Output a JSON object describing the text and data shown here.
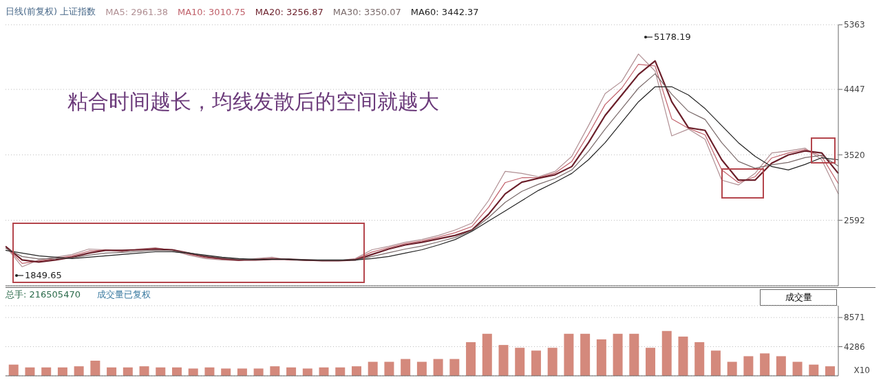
{
  "chart_data": [
    {
      "type": "line",
      "subtitle": "日线(前复权)  上证指数",
      "annotations": [
        "粘合时间越长，均线发散后的空间就越大",
        "5178.19",
        "1849.65"
      ],
      "categories": [
        null,
        null,
        null,
        null,
        null,
        null,
        null,
        null,
        null,
        null,
        null,
        null,
        null,
        null,
        null,
        null,
        null,
        null,
        null,
        null,
        null,
        null,
        null,
        null,
        null,
        null,
        null,
        null,
        null,
        null,
        null,
        null,
        null,
        null,
        null,
        null,
        null,
        null,
        null,
        null,
        null,
        null,
        null,
        null,
        null,
        null,
        null,
        null,
        null,
        null,
        null
      ],
      "series": [
        {
          "name": "MA5: 2961.38",
          "color": "#b08f93",
          "values": [
            2223,
            1934,
            2030,
            2069,
            2108,
            2185,
            2175,
            2146,
            2185,
            2204,
            2166,
            2098,
            2050,
            2030,
            2021,
            2050,
            2069,
            2030,
            2021,
            2021,
            2021,
            2050,
            2175,
            2223,
            2281,
            2320,
            2378,
            2455,
            2552,
            2871,
            3286,
            3257,
            3209,
            3286,
            3499,
            3933,
            4387,
            4561,
            4948,
            4706,
            3788,
            3885,
            3740,
            3161,
            3093,
            3257,
            3547,
            3576,
            3615,
            3450,
            2967
          ]
        },
        {
          "name": "MA10: 3010.75",
          "color": "#c0606a",
          "values": [
            2223,
            1982,
            2016,
            2050,
            2089,
            2156,
            2171,
            2156,
            2180,
            2195,
            2171,
            2113,
            2065,
            2040,
            2026,
            2040,
            2055,
            2035,
            2026,
            2021,
            2021,
            2040,
            2142,
            2204,
            2262,
            2301,
            2354,
            2417,
            2504,
            2775,
            3127,
            3195,
            3199,
            3262,
            3427,
            3813,
            4233,
            4465,
            4803,
            4779,
            4030,
            3895,
            3803,
            3306,
            3127,
            3209,
            3475,
            3547,
            3596,
            3499,
            3112
          ]
        },
        {
          "name": "MA20: 3256.87",
          "color": "#6b1f2a",
          "values": [
            2223,
            2030,
            2001,
            2030,
            2069,
            2127,
            2166,
            2166,
            2175,
            2185,
            2175,
            2127,
            2079,
            2050,
            2030,
            2030,
            2040,
            2040,
            2030,
            2021,
            2021,
            2030,
            2108,
            2185,
            2243,
            2281,
            2330,
            2378,
            2455,
            2678,
            2967,
            3132,
            3189,
            3238,
            3354,
            3692,
            4078,
            4368,
            4658,
            4851,
            4271,
            3904,
            3866,
            3450,
            3161,
            3161,
            3402,
            3518,
            3576,
            3547,
            3257
          ]
        },
        {
          "name": "MA30: 3350.07",
          "color": "#7a6a6a",
          "values": [
            2195,
            2079,
            2045,
            2050,
            2060,
            2098,
            2127,
            2137,
            2151,
            2166,
            2161,
            2127,
            2089,
            2060,
            2040,
            2035,
            2040,
            2040,
            2030,
            2026,
            2026,
            2030,
            2079,
            2132,
            2185,
            2228,
            2287,
            2349,
            2446,
            2630,
            2847,
            3002,
            3103,
            3185,
            3306,
            3571,
            3885,
            4175,
            4465,
            4668,
            4378,
            4136,
            4021,
            3692,
            3427,
            3330,
            3378,
            3412,
            3480,
            3513,
            3360
          ]
        },
        {
          "name": "MA60: 3442.37",
          "color": "#222222",
          "values": [
            2166,
            2127,
            2088,
            2069,
            2050,
            2069,
            2088,
            2108,
            2127,
            2146,
            2146,
            2127,
            2098,
            2069,
            2050,
            2040,
            2040,
            2040,
            2030,
            2030,
            2030,
            2030,
            2050,
            2079,
            2127,
            2175,
            2243,
            2320,
            2436,
            2581,
            2726,
            2871,
            3016,
            3132,
            3257,
            3450,
            3692,
            3982,
            4271,
            4484,
            4484,
            4368,
            4175,
            3933,
            3692,
            3499,
            3354,
            3305,
            3383,
            3479,
            3450
          ]
        }
      ],
      "ylim": [
        1664,
        5363
      ],
      "yticks": [
        2592,
        3520,
        4447,
        5363
      ],
      "grid": "y",
      "legend": "top left",
      "marker": "none",
      "line_style": "solid"
    },
    {
      "type": "bar",
      "subtitle": "总手: 216505470",
      "annotations": [
        "成交量已复权",
        "成交量"
      ],
      "ylabel": "X10",
      "categories": [
        null,
        null,
        null,
        null,
        null,
        null,
        null,
        null,
        null,
        null,
        null,
        null,
        null,
        null,
        null,
        null,
        null,
        null,
        null,
        null,
        null,
        null,
        null,
        null,
        null,
        null,
        null,
        null,
        null,
        null,
        null,
        null,
        null,
        null,
        null,
        null,
        null,
        null,
        null,
        null,
        null,
        null,
        null,
        null,
        null,
        null,
        null,
        null,
        null,
        null,
        null
      ],
      "values": [
        1648,
        1236,
        1236,
        1236,
        1401,
        2225,
        1236,
        1236,
        1401,
        1236,
        1236,
        1071,
        1236,
        1071,
        1071,
        1071,
        1401,
        1236,
        1071,
        1236,
        1236,
        1401,
        2060,
        2060,
        2472,
        2060,
        2472,
        2472,
        4944,
        6180,
        4532,
        4120,
        3708,
        4120,
        6180,
        6180,
        5356,
        6180,
        6180,
        4120,
        6592,
        5768,
        4944,
        3708,
        2060,
        2884,
        3296,
        2884,
        2060,
        1648,
        1401
      ],
      "color": "#d4897c",
      "ylim": [
        0,
        10300
      ],
      "yticks": [
        4286,
        8571
      ],
      "grid": "y"
    }
  ]
}
